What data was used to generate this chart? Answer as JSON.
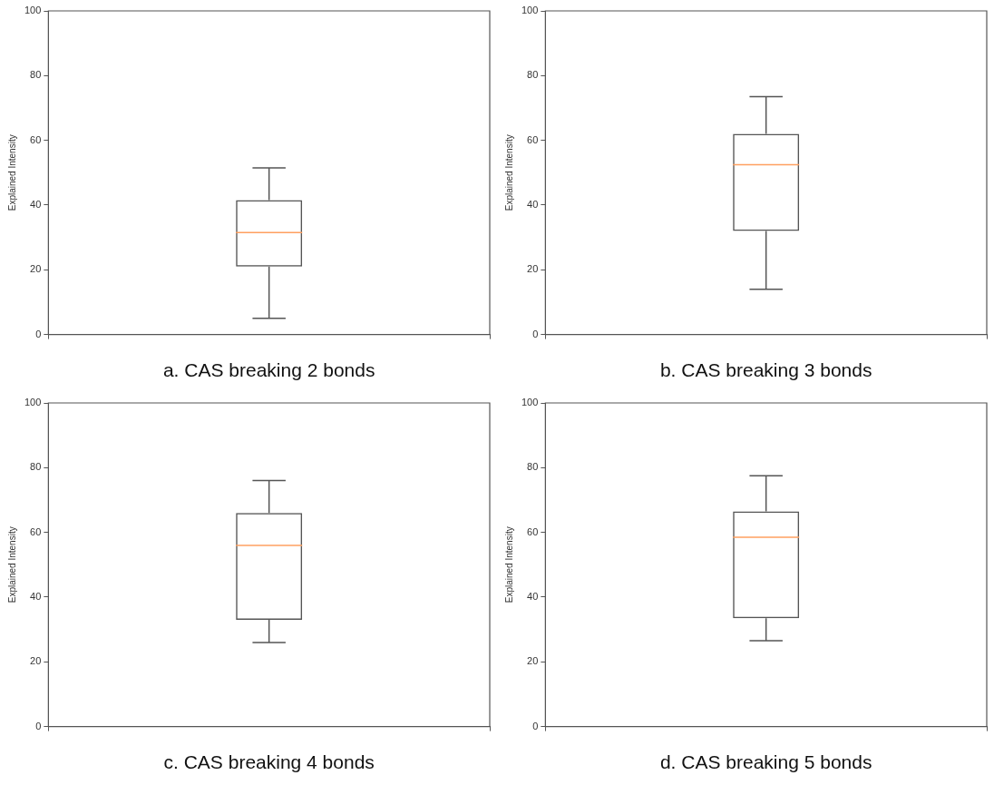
{
  "chart_data": [
    {
      "type": "box",
      "xlabel": "a. CAS breaking 2 bonds",
      "ylabel": "Explained Intensity",
      "categories": [
        null
      ],
      "ylim": [
        0,
        100
      ],
      "yticks": [
        0,
        20,
        40,
        60,
        80,
        100
      ],
      "grid": false,
      "legend": false,
      "series": [
        {
          "color": "#555555",
          "boxes": [
            {
              "low": 5,
              "q1": 21,
              "median": 31.5,
              "q3": 41.5,
              "high": 51.5
            }
          ]
        }
      ]
    },
    {
      "type": "box",
      "xlabel": "b. CAS breaking 3 bonds",
      "ylabel": "Explained Intensity",
      "categories": [
        null
      ],
      "ylim": [
        0,
        100
      ],
      "yticks": [
        0,
        20,
        40,
        60,
        80,
        100
      ],
      "grid": false,
      "legend": false,
      "series": [
        {
          "color": "#555555",
          "boxes": [
            {
              "low": 14,
              "q1": 32,
              "median": 52.5,
              "q3": 62,
              "high": 73.5
            }
          ]
        }
      ]
    },
    {
      "type": "box",
      "xlabel": "c. CAS breaking 4 bonds",
      "ylabel": "Explained Intensity",
      "categories": [
        null
      ],
      "ylim": [
        0,
        100
      ],
      "yticks": [
        0,
        20,
        40,
        60,
        80,
        100
      ],
      "grid": false,
      "legend": false,
      "series": [
        {
          "color": "#555555",
          "boxes": [
            {
              "low": 26,
              "q1": 33,
              "median": 56,
              "q3": 66,
              "high": 76
            }
          ]
        }
      ]
    },
    {
      "type": "box",
      "xlabel": "d. CAS breaking 5 bonds",
      "ylabel": "Explained Intensity",
      "categories": [
        null
      ],
      "ylim": [
        0,
        100
      ],
      "yticks": [
        0,
        20,
        40,
        60,
        80,
        100
      ],
      "grid": false,
      "legend": false,
      "series": [
        {
          "color": "#555555",
          "boxes": [
            {
              "low": 26.5,
              "q1": 33.5,
              "median": 58.5,
              "q3": 66.5,
              "high": 77.5
            }
          ]
        }
      ]
    }
  ]
}
